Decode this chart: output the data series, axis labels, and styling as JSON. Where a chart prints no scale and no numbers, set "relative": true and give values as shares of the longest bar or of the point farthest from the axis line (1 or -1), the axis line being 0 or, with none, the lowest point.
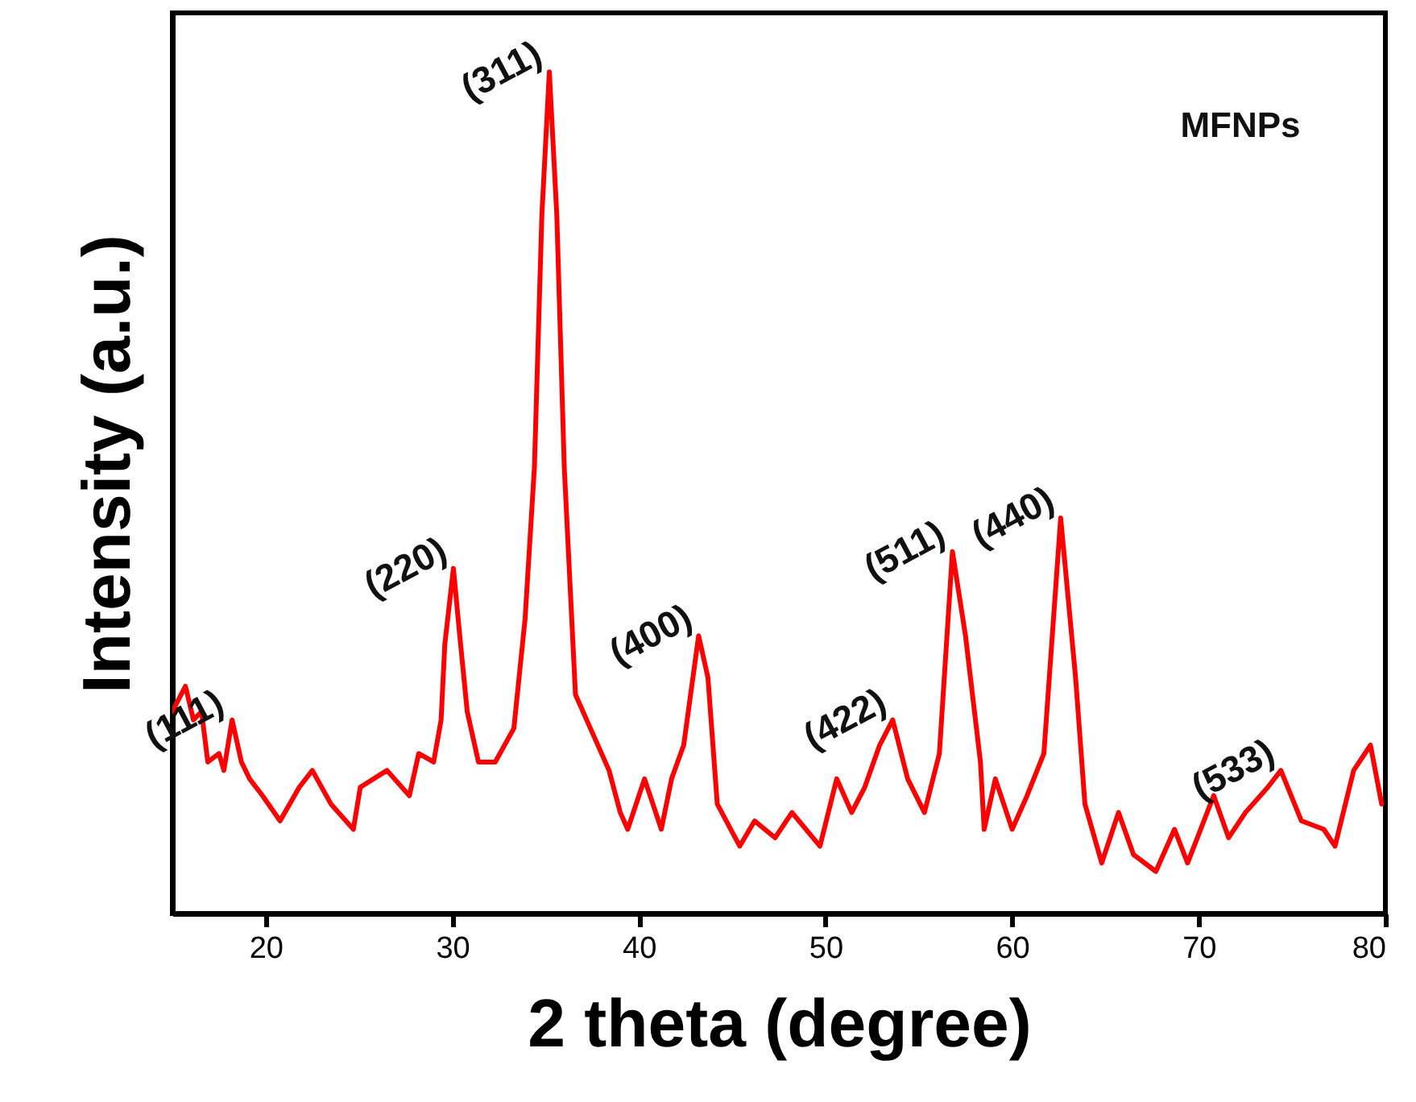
{
  "chart_data": {
    "type": "line",
    "xlabel": "2 theta (degree)",
    "ylabel": "Intensity (a.u.)",
    "relative": true,
    "xlim": [
      15,
      80
    ],
    "xticks": [
      20,
      30,
      40,
      50,
      60,
      70,
      80
    ],
    "grid": false,
    "legend": false,
    "marker": "none",
    "line_style": "solid",
    "annotations": [
      "MFNPs",
      {
        "text": "(111)",
        "x": 18.2,
        "y": 0.23
      },
      {
        "text": "(220)",
        "x": 30.06,
        "y": 0.41
      },
      {
        "text": "(311)",
        "x": 35.2,
        "y": 1
      },
      {
        "text": "(400)",
        "x": 43.2,
        "y": 0.33
      },
      {
        "text": "(422)",
        "x": 53.6,
        "y": 0.23
      },
      {
        "text": "(511)",
        "x": 56.8,
        "y": 0.43
      },
      {
        "text": "(440)",
        "x": 62.6,
        "y": 0.47
      },
      {
        "text": "(533)",
        "x": 74.4,
        "y": 0.17
      }
    ],
    "series": [
      {
        "color": "#ff0000",
        "x": [
          15.0,
          15.7,
          16.13,
          16.56,
          16.9,
          17.5,
          17.76,
          18.2,
          18.7,
          19.14,
          19.83,
          20.77,
          21.8,
          22.5,
          23.5,
          24.7,
          25.07,
          26.5,
          27.7,
          28.2,
          29.0,
          29.4,
          29.6,
          30.06,
          30.4,
          30.8,
          31.4,
          32.3,
          33.3,
          33.9,
          34.4,
          34.8,
          35.2,
          35.6,
          36.0,
          36.6,
          37.4,
          38.4,
          39.0,
          39.4,
          40.3,
          41.2,
          41.75,
          42.4,
          43.2,
          43.7,
          44.2,
          45.4,
          46.2,
          47.3,
          48.2,
          49.7,
          50.6,
          51.4,
          52.1,
          52.9,
          53.6,
          54.4,
          55.3,
          56.1,
          56.8,
          57.5,
          58.3,
          58.5,
          59.1,
          60.0,
          60.8,
          61.7,
          62.6,
          63.4,
          63.9,
          64.8,
          65.7,
          66.5,
          67.7,
          68.7,
          69.4,
          70.8,
          71.6,
          72.5,
          73.7,
          74.4,
          75.5,
          76.7,
          77.3,
          78.3,
          79.2,
          79.8
        ],
        "values": [
          0.24,
          0.27,
          0.23,
          0.24,
          0.18,
          0.19,
          0.17,
          0.23,
          0.18,
          0.16,
          0.14,
          0.11,
          0.15,
          0.17,
          0.13,
          0.1,
          0.15,
          0.17,
          0.14,
          0.19,
          0.18,
          0.23,
          0.32,
          0.41,
          0.33,
          0.24,
          0.18,
          0.18,
          0.22,
          0.35,
          0.53,
          0.83,
          1,
          0.83,
          0.53,
          0.26,
          0.22,
          0.17,
          0.12,
          0.1,
          0.16,
          0.1,
          0.16,
          0.2,
          0.33,
          0.28,
          0.13,
          0.08,
          0.11,
          0.09,
          0.12,
          0.08,
          0.16,
          0.12,
          0.15,
          0.2,
          0.23,
          0.16,
          0.12,
          0.19,
          0.43,
          0.33,
          0.18,
          0.1,
          0.16,
          0.1,
          0.14,
          0.19,
          0.47,
          0.28,
          0.13,
          0.06,
          0.12,
          0.07,
          0.05,
          0.1,
          0.06,
          0.14,
          0.09,
          0.12,
          0.15,
          0.17,
          0.11,
          0.1,
          0.08,
          0.17,
          0.2,
          0.13
        ]
      }
    ]
  }
}
